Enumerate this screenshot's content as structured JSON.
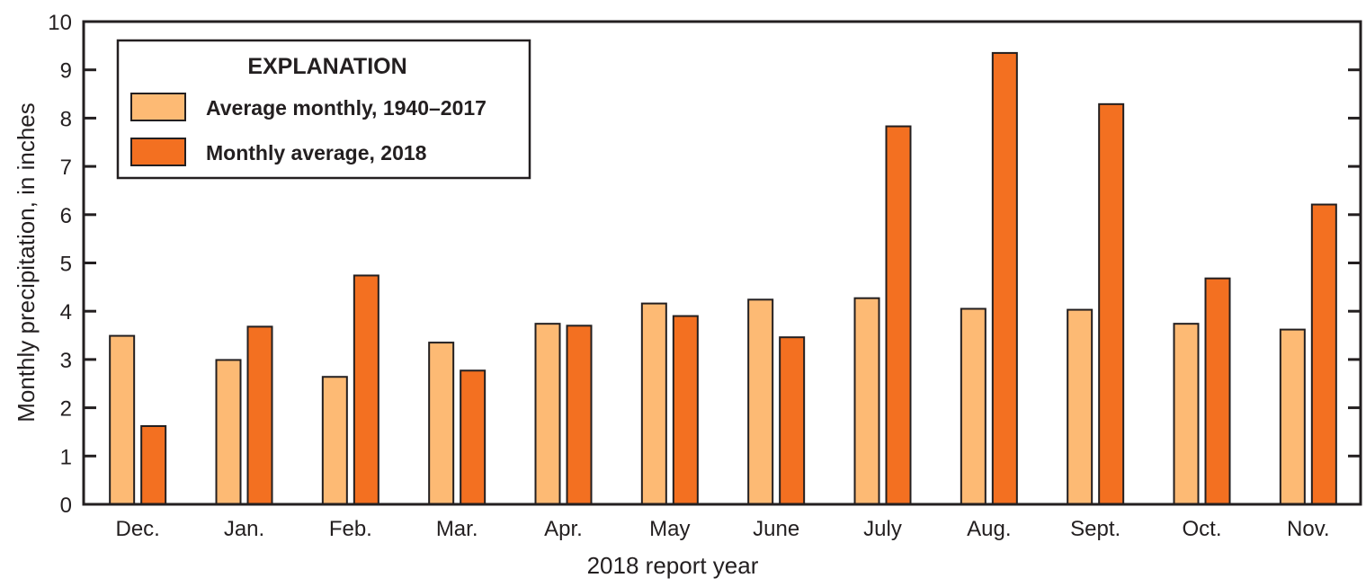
{
  "chart_data": {
    "type": "bar",
    "title": "",
    "xlabel": "2018 report year",
    "ylabel": "Monthly precipitation, in inches",
    "ylim": [
      0,
      10
    ],
    "yticks": [
      0,
      1,
      2,
      3,
      4,
      5,
      6,
      7,
      8,
      9,
      10
    ],
    "grid": false,
    "legend_position": "upper-left",
    "legend_title": "EXPLANATION",
    "categories": [
      "Dec.",
      "Jan.",
      "Feb.",
      "Mar.",
      "Apr.",
      "May",
      "June",
      "July",
      "Aug.",
      "Sept.",
      "Oct.",
      "Nov."
    ],
    "series": [
      {
        "name": "Average monthly, 1940–2017",
        "color": "#fdba74",
        "values": [
          3.49,
          2.99,
          2.64,
          3.35,
          3.74,
          4.16,
          4.24,
          4.27,
          4.05,
          4.03,
          3.74,
          3.62
        ]
      },
      {
        "name": "Monthly average, 2018",
        "color": "#f37021",
        "values": [
          1.62,
          3.68,
          4.74,
          2.77,
          3.7,
          3.9,
          3.46,
          7.83,
          9.35,
          8.29,
          4.68,
          6.21
        ]
      }
    ]
  },
  "colors": {
    "axis": "#231f20",
    "outline": "#231f20",
    "background": "#ffffff"
  }
}
